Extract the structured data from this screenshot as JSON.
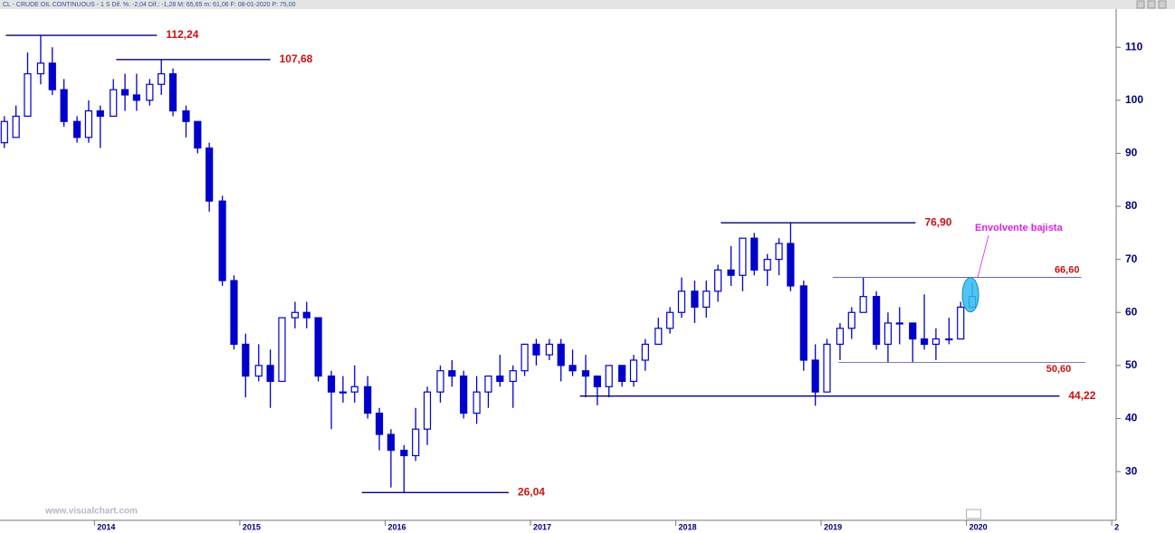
{
  "chart_data": {
    "type": "candlestick",
    "title": "CL - CRUDE OIL CONTINUOUS -  1 S  Dif. %: -2,04  Dif.: -1,28  M: 65,65  m: 61,06  F: 08-01-2020  P: 75,00",
    "watermark": "www.visualchart.com",
    "color": "#0000cc",
    "xlim": [
      2013.35,
      2021.03
    ],
    "ylim": [
      20.8,
      117.2
    ],
    "xticks": [
      2014,
      2015,
      2016,
      2017,
      2018,
      2019,
      2020,
      {
        "value": 2021,
        "label": "2"
      }
    ],
    "yticks": [
      30,
      40,
      50,
      60,
      70,
      80,
      90,
      100,
      110
    ],
    "x": [
      2013.38,
      2013.46,
      2013.54,
      2013.63,
      2013.71,
      2013.79,
      2013.88,
      2013.96,
      2014.04,
      2014.13,
      2014.21,
      2014.29,
      2014.38,
      2014.46,
      2014.54,
      2014.63,
      2014.71,
      2014.79,
      2014.88,
      2014.96,
      2015.04,
      2015.13,
      2015.21,
      2015.29,
      2015.38,
      2015.46,
      2015.54,
      2015.63,
      2015.71,
      2015.79,
      2015.88,
      2015.96,
      2016.04,
      2016.13,
      2016.21,
      2016.29,
      2016.38,
      2016.46,
      2016.54,
      2016.63,
      2016.71,
      2016.79,
      2016.88,
      2016.96,
      2017.04,
      2017.13,
      2017.21,
      2017.29,
      2017.38,
      2017.46,
      2017.54,
      2017.63,
      2017.71,
      2017.79,
      2017.88,
      2017.96,
      2018.04,
      2018.13,
      2018.21,
      2018.29,
      2018.38,
      2018.46,
      2018.54,
      2018.63,
      2018.71,
      2018.79,
      2018.88,
      2018.96,
      2019.04,
      2019.13,
      2019.21,
      2019.29,
      2019.38,
      2019.46,
      2019.54,
      2019.63,
      2019.71,
      2019.79,
      2019.88,
      2019.96,
      2020.04
    ],
    "open": [
      92,
      93,
      97,
      105,
      107,
      102,
      96,
      93,
      98,
      97,
      102,
      101,
      100,
      103,
      105,
      98,
      96,
      91,
      81,
      66,
      54,
      48,
      50,
      47,
      59,
      60,
      59,
      48,
      45,
      45,
      46,
      41,
      37,
      34,
      33,
      38,
      45,
      49,
      48,
      41,
      45,
      48,
      47,
      49,
      54,
      52,
      54,
      50,
      49,
      48,
      46,
      50,
      47,
      51,
      54,
      57,
      60,
      64,
      61,
      64,
      68,
      67,
      74,
      68,
      70,
      73,
      65,
      51,
      45,
      54,
      57,
      60,
      63,
      54,
      58,
      58,
      55,
      54,
      55,
      55,
      61
    ],
    "high": [
      97,
      99,
      109,
      112.24,
      110,
      104,
      97,
      100,
      99,
      104,
      105,
      105,
      104,
      107.68,
      106,
      99,
      96,
      92,
      82,
      67,
      56,
      54,
      53,
      59,
      62,
      62,
      59,
      49,
      48,
      50,
      48,
      42,
      38,
      35,
      42,
      46,
      50,
      51,
      49,
      48,
      48,
      52,
      50,
      54,
      55,
      55,
      55,
      53,
      52,
      48,
      50,
      50,
      52,
      55,
      59,
      61,
      66.6,
      66,
      66,
      69,
      72.5,
      74,
      75,
      71,
      74,
      76.9,
      66,
      54,
      55,
      58,
      61,
      66.6,
      64,
      60,
      61,
      58,
      63.4,
      57,
      59,
      62,
      65.65
    ],
    "low": [
      91,
      93,
      97,
      103,
      101,
      95,
      92,
      92,
      91,
      97,
      98,
      98,
      99,
      101,
      97,
      93,
      90,
      79,
      65,
      53,
      44,
      47,
      42,
      47,
      57,
      57,
      47,
      38,
      43,
      43,
      40,
      34,
      27,
      26.04,
      32,
      35,
      43,
      46,
      40,
      39,
      42,
      46,
      42,
      48,
      50,
      51,
      47,
      48,
      44,
      42.5,
      44,
      46,
      46,
      49,
      54,
      56,
      59,
      58,
      59,
      62,
      65,
      64,
      67,
      65,
      67,
      64,
      49,
      42.4,
      45,
      51,
      55,
      60,
      53,
      50.6,
      54,
      50.6,
      53,
      51,
      54,
      55,
      61
    ],
    "close": [
      96,
      97,
      105,
      107,
      102,
      96,
      93,
      98,
      97,
      102,
      101,
      100,
      103,
      105,
      98,
      96,
      91,
      81,
      66,
      54,
      48,
      50,
      47,
      59,
      60,
      59,
      48,
      45,
      45,
      46,
      41,
      37,
      34,
      33,
      38,
      45,
      49,
      48,
      41,
      45,
      48,
      47,
      49,
      54,
      52,
      54,
      50,
      49,
      48,
      46,
      50,
      47,
      51,
      54,
      57,
      60,
      64,
      61,
      64,
      68,
      67,
      74,
      68,
      70,
      73,
      65,
      51,
      45,
      54,
      57,
      60,
      63,
      54,
      58,
      58,
      55,
      54,
      55,
      55,
      61,
      63
    ],
    "levels": [
      {
        "value": 112.24,
        "label": "112,24",
        "x_start": 2013.39,
        "x_end": 2014.43
      },
      {
        "value": 107.68,
        "label": "107,68",
        "x_start": 2014.15,
        "x_end": 2015.21
      },
      {
        "value": 76.9,
        "label": "76,90",
        "x_start": 2018.31,
        "x_end": 2019.65
      },
      {
        "value": 66.6,
        "label": "66,60",
        "x_start": 2019.08,
        "x_end": 2020.79,
        "style": "thin"
      },
      {
        "value": 50.6,
        "label": "50,60",
        "x_start": 2019.12,
        "x_end": 2020.82,
        "style": "thin"
      },
      {
        "value": 44.22,
        "label": "44,22",
        "x_start": 2017.34,
        "x_end": 2020.64
      },
      {
        "value": 26.04,
        "label": "26,04",
        "x_start": 2015.84,
        "x_end": 2016.85
      }
    ],
    "annotation": {
      "text": "Envolvente bajista",
      "color": "#e020e0"
    }
  }
}
